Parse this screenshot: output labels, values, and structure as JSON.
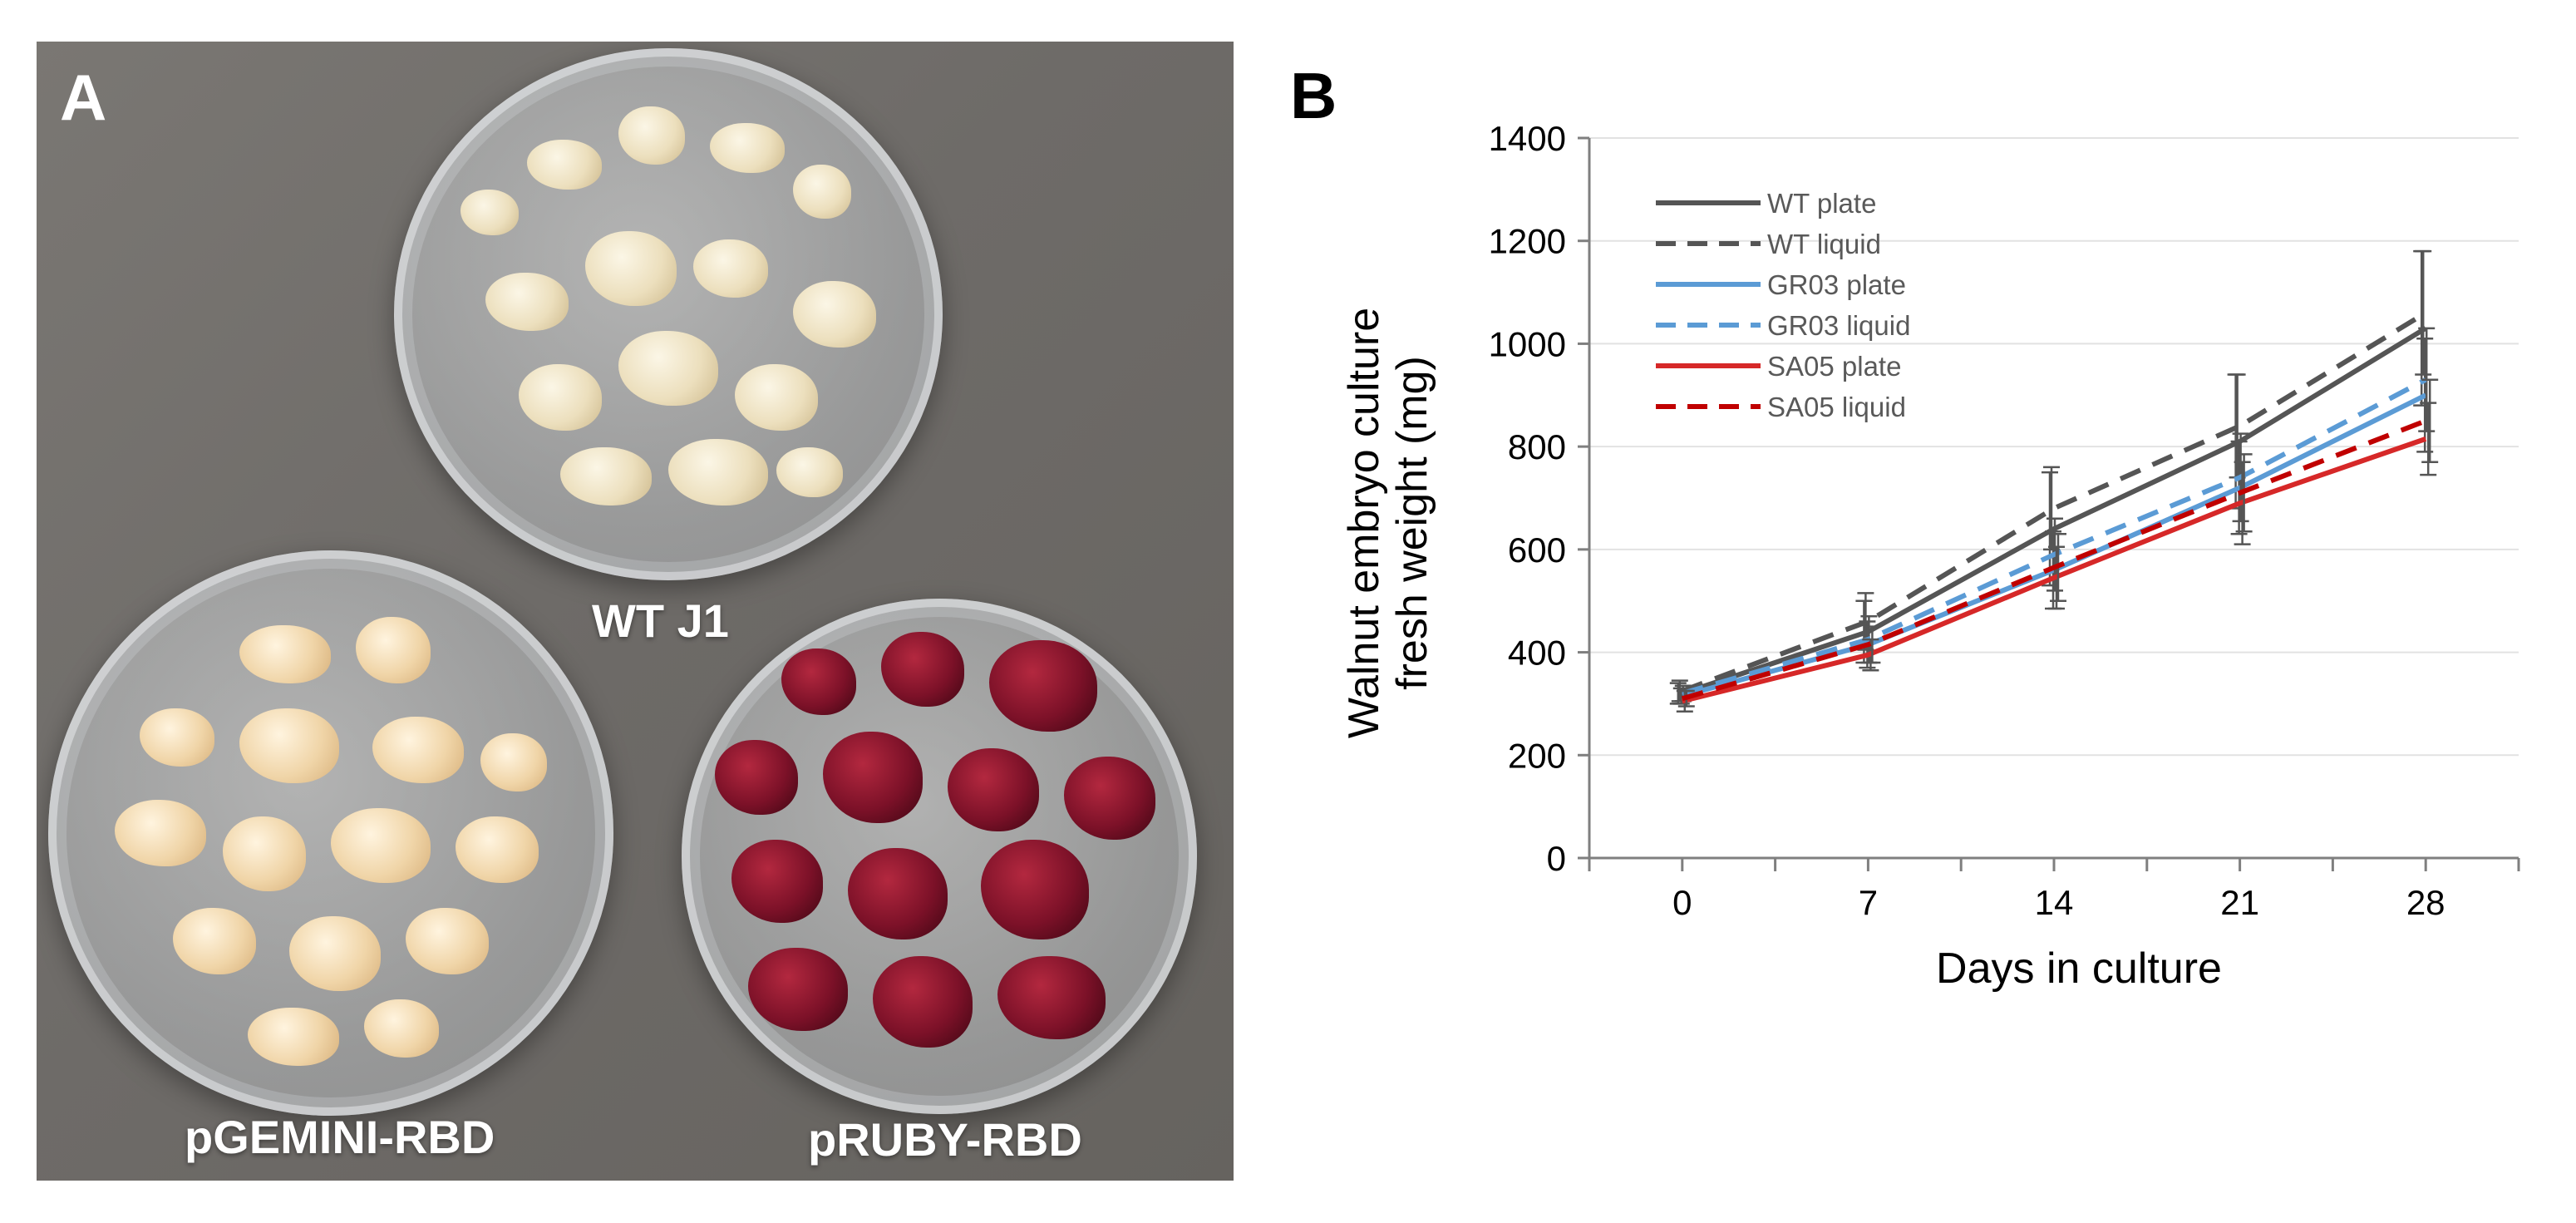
{
  "figure": {
    "panel_a_letter": "A",
    "panel_b_letter": "B",
    "photo_labels": {
      "wt": "WT J1",
      "gemini": "pGEMINI-RBD",
      "ruby": "pRUBY-RBD"
    }
  },
  "chart_data": {
    "type": "line",
    "title": "",
    "xlabel": "Days in culture",
    "ylabel_lines": [
      "Walnut embryo culture",
      "fresh weight (mg)"
    ],
    "x": [
      0,
      7,
      14,
      21,
      28
    ],
    "x_ticks": [
      "0",
      "7",
      "14",
      "21",
      "28"
    ],
    "xlim": [
      -3.5,
      31.5
    ],
    "ylim": [
      0,
      1400
    ],
    "y_ticks": [
      "0",
      "200",
      "400",
      "600",
      "800",
      "1000",
      "1200",
      "1400"
    ],
    "grid": true,
    "legend_position": "top-left",
    "series": [
      {
        "name": "WT plate",
        "color": "#555555",
        "dashed": false,
        "values": [
          320,
          440,
          640,
          810,
          1030
        ],
        "errors": [
          20,
          60,
          110,
          130,
          150
        ]
      },
      {
        "name": "WT liquid",
        "color": "#555555",
        "dashed": true,
        "values": [
          325,
          460,
          680,
          840,
          1060
        ],
        "errors": [
          20,
          55,
          80,
          100,
          120
        ]
      },
      {
        "name": "GR03 plate",
        "color": "#5b9bd5",
        "dashed": false,
        "values": [
          315,
          415,
          560,
          720,
          900
        ],
        "errors": [
          15,
          45,
          75,
          90,
          110
        ]
      },
      {
        "name": "GR03 liquid",
        "color": "#5b9bd5",
        "dashed": true,
        "values": [
          320,
          425,
          590,
          740,
          930
        ],
        "errors": [
          15,
          45,
          70,
          85,
          100
        ]
      },
      {
        "name": "SA05 plate",
        "color": "#d62828",
        "dashed": false,
        "values": [
          305,
          395,
          545,
          690,
          815
        ],
        "errors": [
          20,
          30,
          60,
          80,
          70
        ]
      },
      {
        "name": "SA05 liquid",
        "color": "#c00000",
        "dashed": true,
        "values": [
          310,
          415,
          565,
          710,
          850
        ],
        "errors": [
          15,
          35,
          65,
          75,
          80
        ]
      }
    ]
  }
}
